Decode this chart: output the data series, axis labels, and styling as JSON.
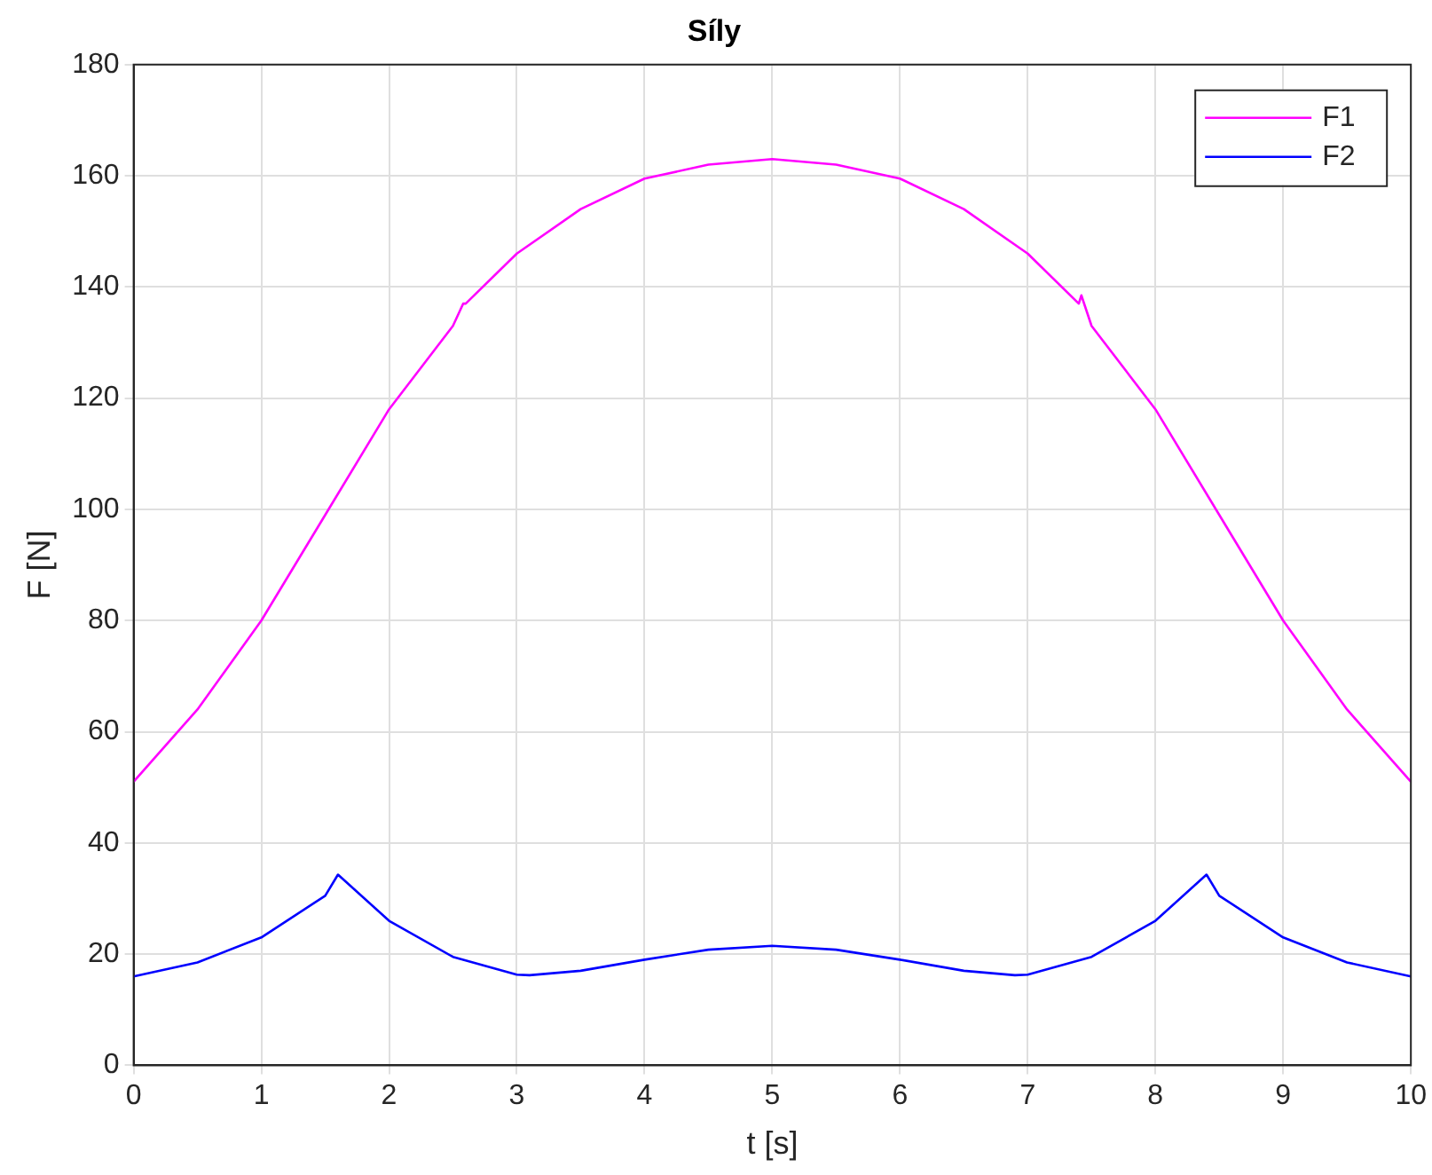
{
  "chart_data": {
    "type": "line",
    "title": "Síly",
    "xlabel": "t [s]",
    "ylabel": "F [N]",
    "xlim": [
      0,
      10
    ],
    "xticks": [
      0,
      1,
      2,
      3,
      4,
      5,
      6,
      7,
      8,
      9,
      10
    ],
    "ylim": [
      0,
      180
    ],
    "yticks": [
      0,
      20,
      40,
      60,
      80,
      100,
      120,
      140,
      160,
      180
    ],
    "grid": true,
    "legend": "top right",
    "marker": "none",
    "line_style": "solid",
    "series": [
      {
        "name": "F1",
        "color": "#ff00ff",
        "x": [
          0,
          0.5,
          1,
          1.5,
          2,
          2.5,
          2.58,
          2.6,
          3,
          3.5,
          4,
          4.5,
          5,
          5.5,
          6,
          6.5,
          7,
          7.4,
          7.42,
          7.5,
          8,
          8.5,
          9,
          9.5,
          10
        ],
        "values": [
          51,
          64,
          80,
          99,
          118,
          133,
          137,
          137,
          146,
          154,
          159.5,
          162,
          163,
          162,
          159.5,
          154,
          146,
          137,
          138.5,
          133,
          118,
          99,
          80,
          64,
          51
        ]
      },
      {
        "name": "F2",
        "color": "#0000ff",
        "x": [
          0,
          0.5,
          1,
          1.5,
          1.6,
          2,
          2.5,
          3,
          3.1,
          3.5,
          4,
          4.5,
          5,
          5.5,
          6,
          6.5,
          6.9,
          7,
          7.5,
          8,
          8.4,
          8.5,
          9,
          9.5,
          10
        ],
        "values": [
          16,
          18.5,
          23,
          30.5,
          34.3,
          26,
          19.5,
          16.3,
          16.2,
          17,
          19,
          20.8,
          21.5,
          20.8,
          19,
          17,
          16.2,
          16.3,
          19.5,
          26,
          34.3,
          30.5,
          23,
          18.5,
          16
        ]
      }
    ]
  }
}
